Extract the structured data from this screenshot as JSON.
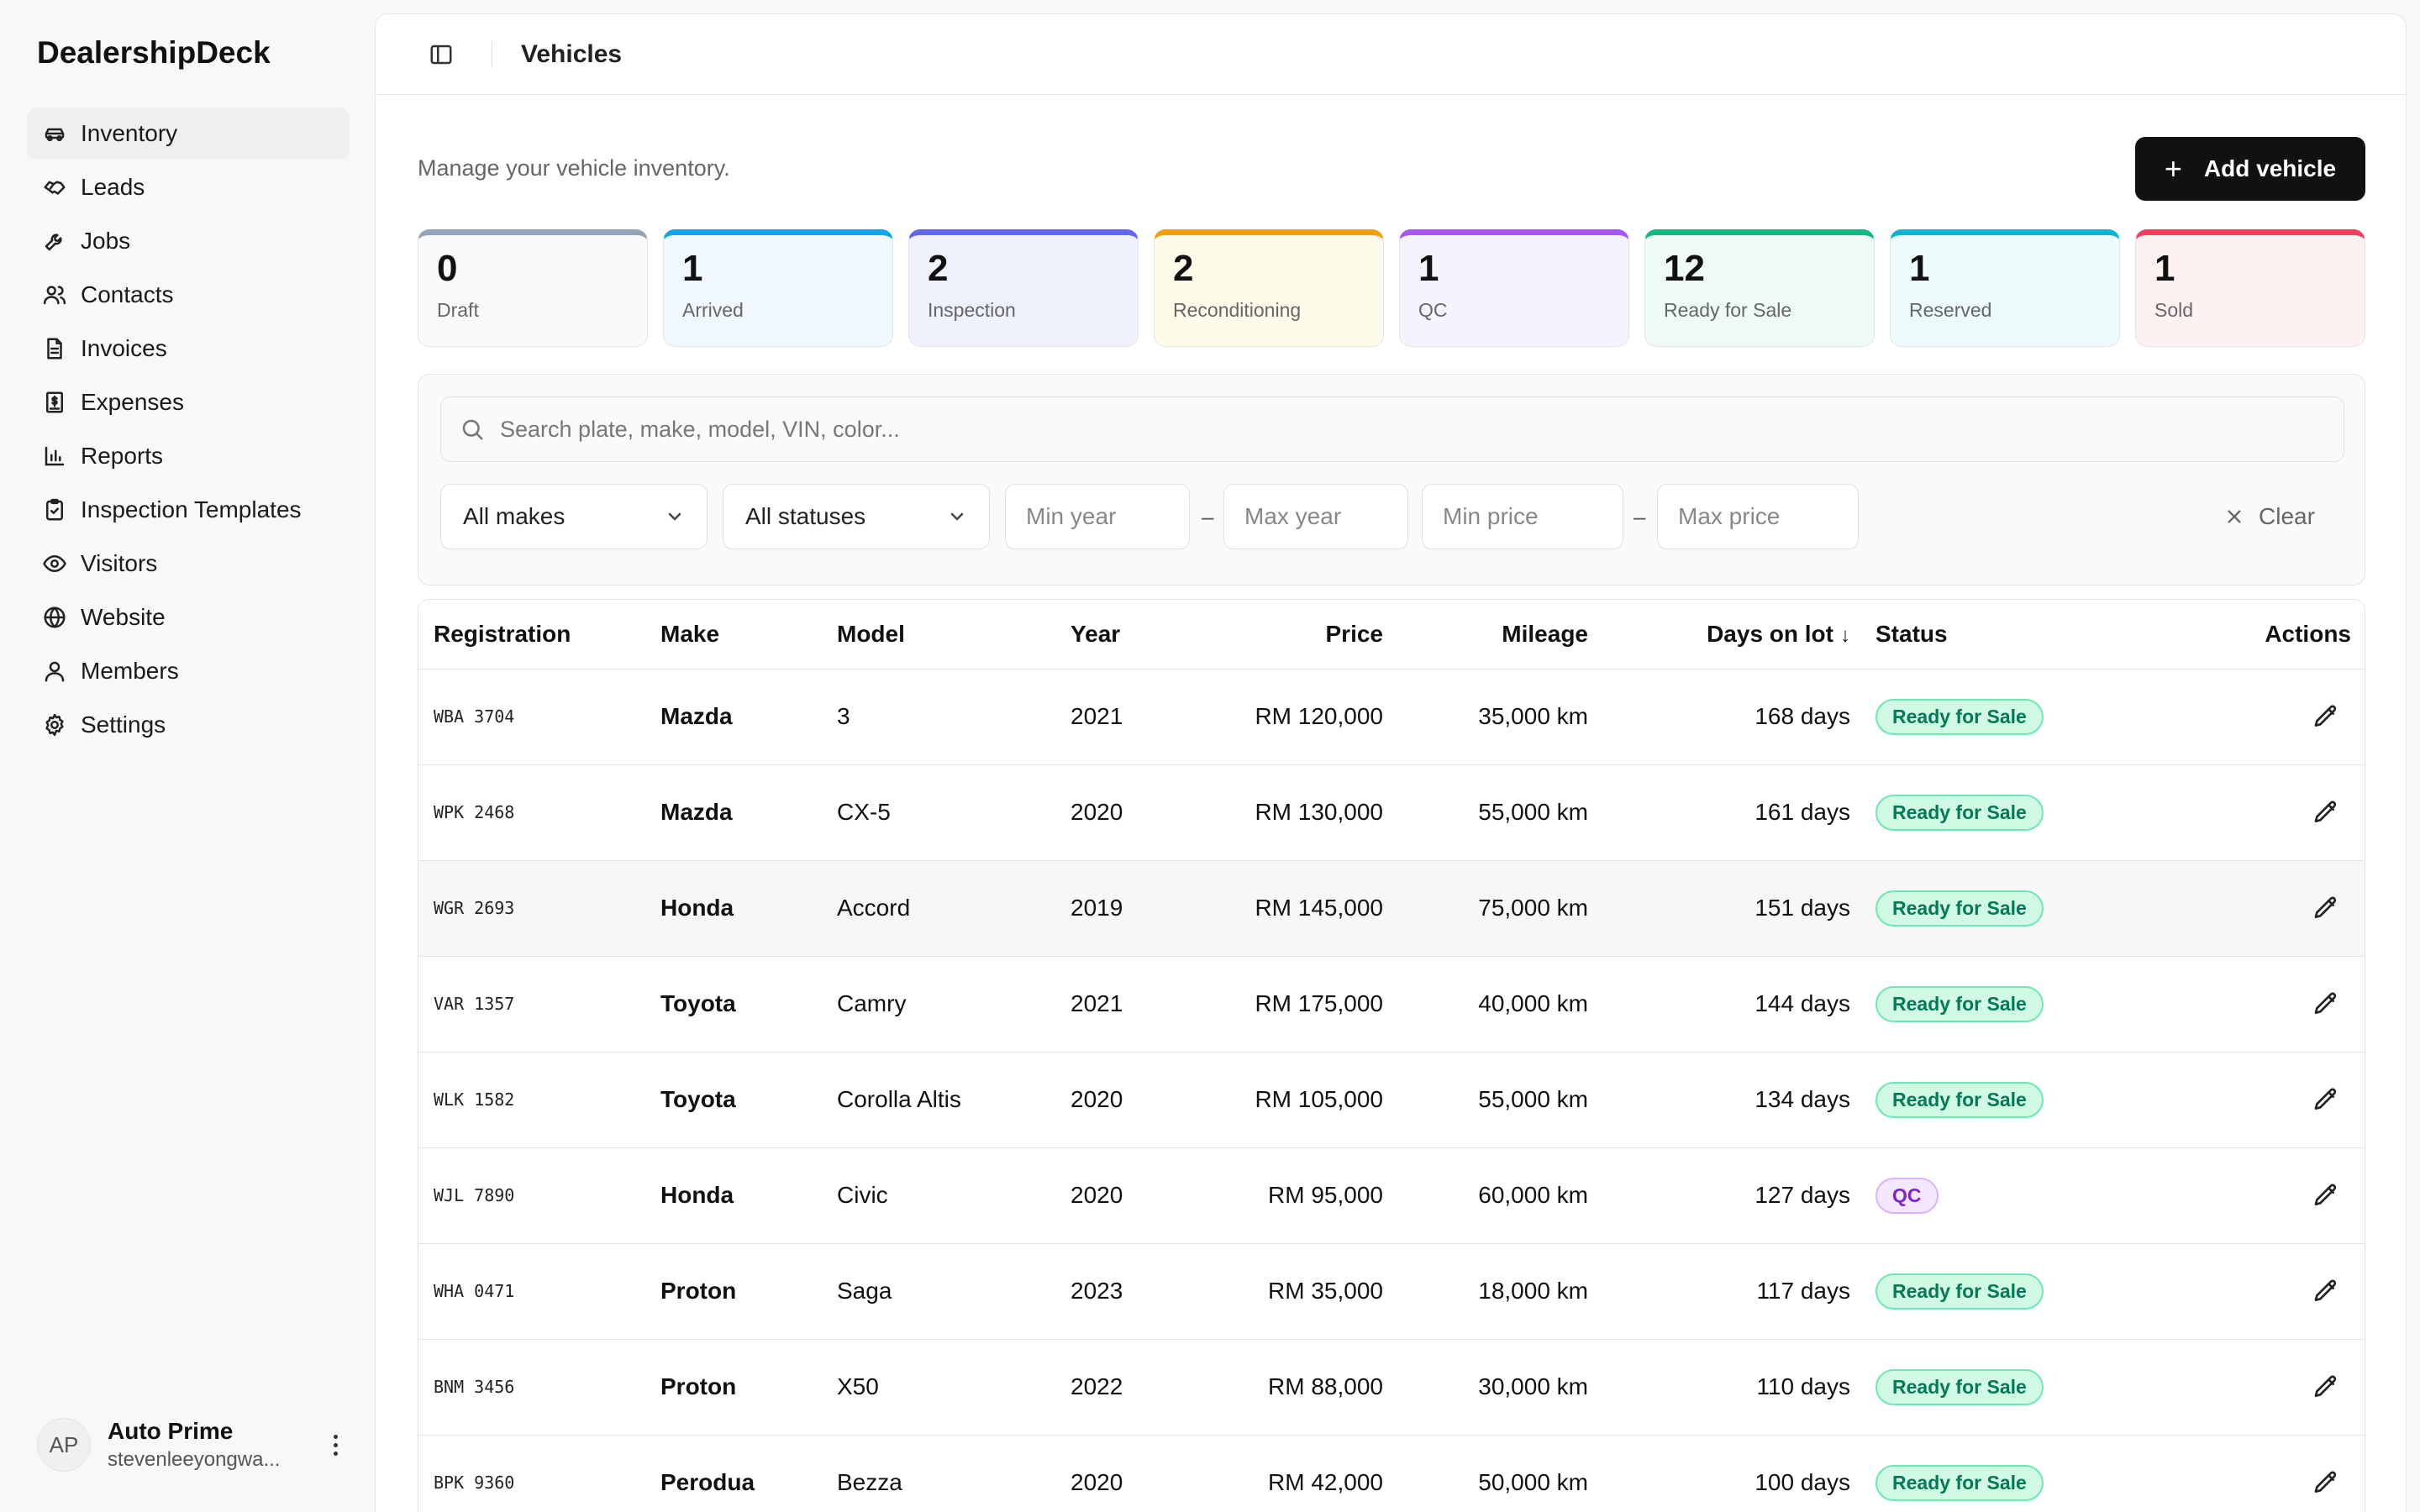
{
  "app": {
    "brand": "DealershipDeck"
  },
  "sidebar": {
    "items": [
      {
        "label": "Inventory",
        "icon": "car-icon",
        "active": true
      },
      {
        "label": "Leads",
        "icon": "handshake-icon",
        "active": false
      },
      {
        "label": "Jobs",
        "icon": "wrench-icon",
        "active": false
      },
      {
        "label": "Contacts",
        "icon": "users-icon",
        "active": false
      },
      {
        "label": "Invoices",
        "icon": "file-text-icon",
        "active": false
      },
      {
        "label": "Expenses",
        "icon": "receipt-dollar-icon",
        "active": false
      },
      {
        "label": "Reports",
        "icon": "bar-chart-icon",
        "active": false
      },
      {
        "label": "Inspection Templates",
        "icon": "clipboard-check-icon",
        "active": false
      },
      {
        "label": "Visitors",
        "icon": "eye-icon",
        "active": false
      },
      {
        "label": "Website",
        "icon": "globe-icon",
        "active": false
      },
      {
        "label": "Members",
        "icon": "user-icon",
        "active": false
      },
      {
        "label": "Settings",
        "icon": "gear-icon",
        "active": false
      }
    ],
    "user": {
      "initials": "AP",
      "name": "Auto Prime",
      "email": "stevenleeyongwa..."
    }
  },
  "header": {
    "title": "Vehicles"
  },
  "page": {
    "subtitle": "Manage your vehicle inventory.",
    "add_button_label": "Add vehicle"
  },
  "stats": [
    {
      "count": "0",
      "label": "Draft",
      "accent": "#94a3b8",
      "bg": "#f8fafc"
    },
    {
      "count": "1",
      "label": "Arrived",
      "accent": "#0ea5e9",
      "bg": "#f0f7fd"
    },
    {
      "count": "2",
      "label": "Inspection",
      "accent": "#6366f1",
      "bg": "#eff2fc"
    },
    {
      "count": "2",
      "label": "Reconditioning",
      "accent": "#f59e0b",
      "bg": "#fefbea"
    },
    {
      "count": "1",
      "label": "QC",
      "accent": "#a855f7",
      "bg": "#f5f3fd"
    },
    {
      "count": "12",
      "label": "Ready for Sale",
      "accent": "#10b981",
      "bg": "#eefbf4"
    },
    {
      "count": "1",
      "label": "Reserved",
      "accent": "#06b6d4",
      "bg": "#edfbfc"
    },
    {
      "count": "1",
      "label": "Sold",
      "accent": "#f43f5e",
      "bg": "#fdf1f2"
    }
  ],
  "filters": {
    "search_placeholder": "Search plate, make, model, VIN, color...",
    "makes_value": "All makes",
    "statuses_value": "All statuses",
    "min_year_placeholder": "Min year",
    "max_year_placeholder": "Max year",
    "min_price_placeholder": "Min price",
    "max_price_placeholder": "Max price",
    "range_separator": "–",
    "clear_label": "Clear"
  },
  "table": {
    "columns": {
      "registration": "Registration",
      "make": "Make",
      "model": "Model",
      "year": "Year",
      "price": "Price",
      "mileage": "Mileage",
      "days": "Days on lot",
      "status": "Status",
      "actions": "Actions"
    },
    "rows": [
      {
        "reg": "WBA 3704",
        "make": "Mazda",
        "model": "3",
        "year": "2021",
        "price": "RM 120,000",
        "mileage": "35,000 km",
        "days": "168 days",
        "status": "Ready for Sale"
      },
      {
        "reg": "WPK 2468",
        "make": "Mazda",
        "model": "CX-5",
        "year": "2020",
        "price": "RM 130,000",
        "mileage": "55,000 km",
        "days": "161 days",
        "status": "Ready for Sale"
      },
      {
        "reg": "WGR 2693",
        "make": "Honda",
        "model": "Accord",
        "year": "2019",
        "price": "RM 145,000",
        "mileage": "75,000 km",
        "days": "151 days",
        "status": "Ready for Sale"
      },
      {
        "reg": "VAR 1357",
        "make": "Toyota",
        "model": "Camry",
        "year": "2021",
        "price": "RM 175,000",
        "mileage": "40,000 km",
        "days": "144 days",
        "status": "Ready for Sale"
      },
      {
        "reg": "WLK 1582",
        "make": "Toyota",
        "model": "Corolla Altis",
        "year": "2020",
        "price": "RM 105,000",
        "mileage": "55,000 km",
        "days": "134 days",
        "status": "Ready for Sale"
      },
      {
        "reg": "WJL 7890",
        "make": "Honda",
        "model": "Civic",
        "year": "2020",
        "price": "RM 95,000",
        "mileage": "60,000 km",
        "days": "127 days",
        "status": "QC"
      },
      {
        "reg": "WHA 0471",
        "make": "Proton",
        "model": "Saga",
        "year": "2023",
        "price": "RM 35,000",
        "mileage": "18,000 km",
        "days": "117 days",
        "status": "Ready for Sale"
      },
      {
        "reg": "BNM 3456",
        "make": "Proton",
        "model": "X50",
        "year": "2022",
        "price": "RM 88,000",
        "mileage": "30,000 km",
        "days": "110 days",
        "status": "Ready for Sale"
      },
      {
        "reg": "BPK 9360",
        "make": "Perodua",
        "model": "Bezza",
        "year": "2020",
        "price": "RM 42,000",
        "mileage": "50,000 km",
        "days": "100 days",
        "status": "Ready for Sale"
      }
    ],
    "highlighted_row": 2,
    "status_colors": {
      "Ready for Sale": {
        "fg": "#047857",
        "bg": "#d1fae5",
        "border": "#6ee7b7"
      },
      "QC": {
        "fg": "#7e22ce",
        "bg": "#f3e8ff",
        "border": "#d8b4fe"
      }
    }
  }
}
